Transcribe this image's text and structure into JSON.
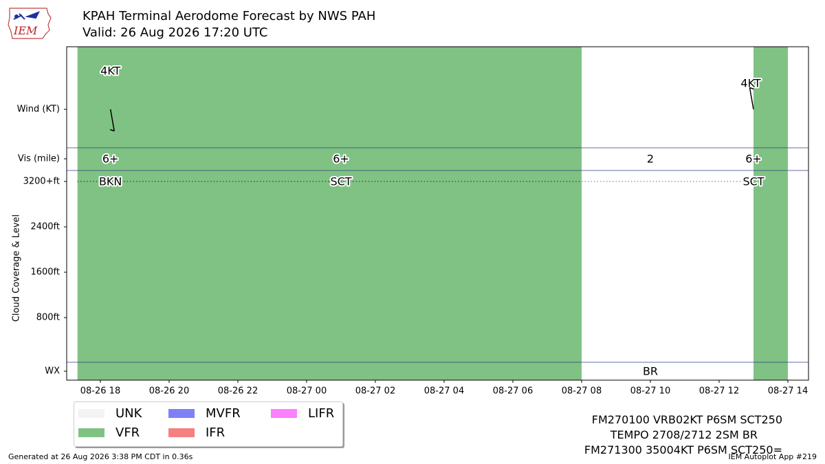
{
  "header": {
    "title": "KPAH Terminal Aerodome Forecast by NWS PAH",
    "subtitle": "Valid: 26 Aug 2026 17:20 UTC",
    "logo_text": "IEM"
  },
  "colors": {
    "VFR": "#80c283",
    "MVFR": "#8080f6",
    "IFR": "#f58080",
    "LIFR": "#fc80fc",
    "UNK": "#f3f3f3",
    "separator": "#2a3f7a"
  },
  "chart_data": {
    "type": "timeline",
    "x_ticks": [
      "08-26 18",
      "08-26 20",
      "08-26 22",
      "08-27 00",
      "08-27 02",
      "08-27 04",
      "08-27 06",
      "08-27 08",
      "08-27 10",
      "08-27 12",
      "08-27 14"
    ],
    "xlim": [
      "2026-08-26 17:20",
      "2026-08-27 13:00"
    ],
    "y_labels": {
      "wind": "Wind (KT)",
      "vis": "Vis (mile)",
      "cloud": "Cloud Coverage & Level",
      "wx": "WX"
    },
    "cloud_ticks": [
      "3200+ft",
      "2400ft",
      "1600ft",
      "800ft"
    ],
    "periods": [
      {
        "start": "2026-08-26 17:20",
        "end": "2026-08-27 08:00",
        "category": "VFR"
      },
      {
        "start": "2026-08-27 08:00",
        "end": "2026-08-27 13:00",
        "category": "none"
      },
      {
        "start": "2026-08-27 13:00",
        "end": "2026-08-27 14:00",
        "category": "VFR"
      }
    ],
    "wind": [
      {
        "time": "2026-08-26 17:20",
        "label": "4KT",
        "direction_deg": 350
      },
      {
        "time": "2026-08-27 13:00",
        "label": "4KT",
        "direction_deg": 350
      }
    ],
    "visibility": [
      {
        "time": "2026-08-26 17:20",
        "label": "6+"
      },
      {
        "time": "2026-08-27 01:00",
        "label": "6+"
      },
      {
        "time": "2026-08-27 10:00",
        "label": "2"
      },
      {
        "time": "2026-08-27 13:00",
        "label": "6+"
      }
    ],
    "clouds": [
      {
        "time": "2026-08-26 17:20",
        "label": "BKN"
      },
      {
        "time": "2026-08-27 01:00",
        "label": "SCT"
      },
      {
        "time": "2026-08-27 13:00",
        "label": "SCT"
      }
    ],
    "weather": [
      {
        "time": "2026-08-27 10:00",
        "label": "BR"
      }
    ],
    "legend": [
      "UNK",
      "VFR",
      "MVFR",
      "IFR",
      "LIFR"
    ]
  },
  "taf_lines": [
    "FM270100 VRB02KT P6SM SCT250",
    "TEMPO 2708/2712 2SM BR",
    "FM271300 35004KT P6SM SCT250="
  ],
  "footer": {
    "generated": "Generated at 26 Aug 2026 3:38 PM CDT in 0.36s",
    "app": "IEM Autoplot App #219"
  }
}
